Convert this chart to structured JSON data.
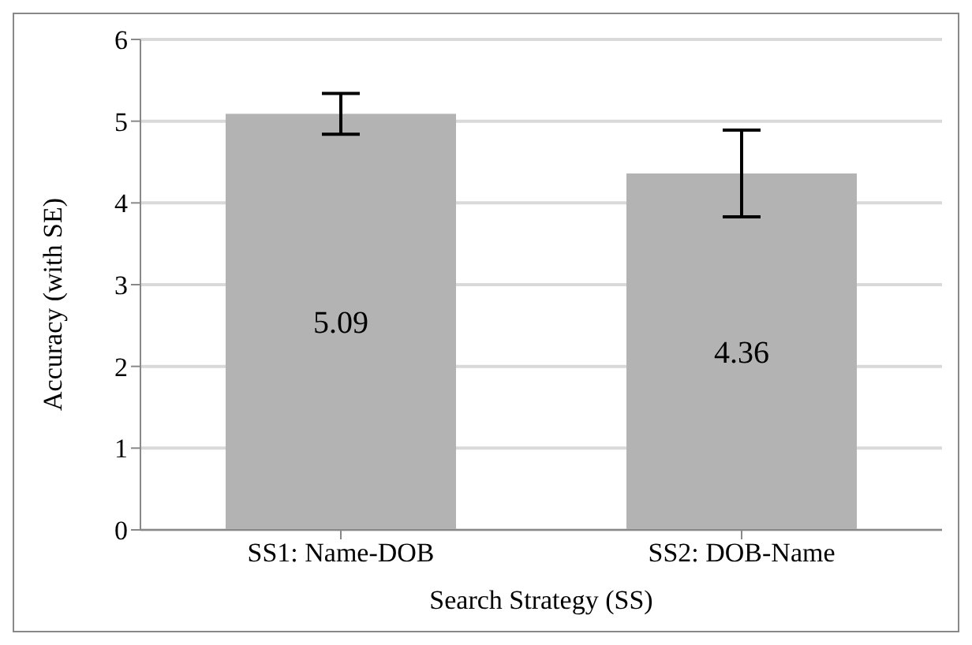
{
  "chart_data": {
    "type": "bar",
    "xlabel": "Search Strategy (SS)",
    "ylabel": "Accuracy (with  SE)",
    "categories": [
      "SS1: Name-DOB",
      "SS2: DOB-Name"
    ],
    "values": [
      5.09,
      4.36
    ],
    "color": "#b3b3b3",
    "errors": [
      0.25,
      0.53
    ],
    "ylim": [
      0,
      6
    ],
    "yticks": [
      0,
      1,
      2,
      3,
      4,
      5,
      6
    ],
    "grid": "y",
    "data_labels": true
  }
}
